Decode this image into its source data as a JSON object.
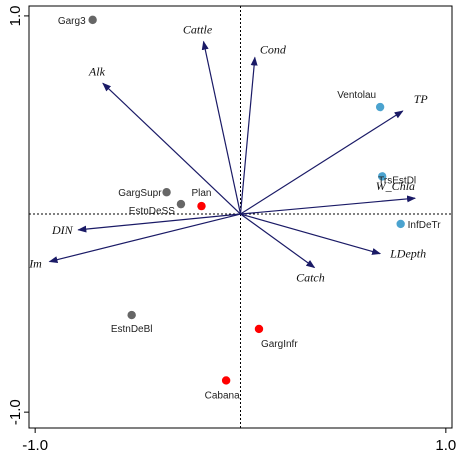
{
  "chart_data": {
    "type": "scatter",
    "title": "",
    "xlabel": "",
    "ylabel": "",
    "xlim": [
      -1.03,
      1.03
    ],
    "ylim": [
      -1.08,
      1.05
    ],
    "x_ticks": [
      "-1.0",
      "1.0"
    ],
    "y_ticks": [
      "1.0",
      "-1.0"
    ],
    "reference_lines": {
      "x": 0,
      "y": 0,
      "style": "dotted"
    },
    "vectors": [
      {
        "label": "Cattle",
        "x": -0.18,
        "y": 0.87
      },
      {
        "label": "Cond",
        "x": 0.07,
        "y": 0.79
      },
      {
        "label": "Alk",
        "x": -0.67,
        "y": 0.66
      },
      {
        "label": "TP",
        "x": 0.79,
        "y": 0.52
      },
      {
        "label": "W_Chla",
        "x": 0.85,
        "y": 0.08
      },
      {
        "label": "DIN",
        "x": -0.79,
        "y": -0.08
      },
      {
        "label": "Im",
        "x": -0.93,
        "y": -0.24
      },
      {
        "label": "LDepth",
        "x": 0.68,
        "y": -0.2
      },
      {
        "label": "Catch",
        "x": 0.36,
        "y": -0.27
      }
    ],
    "series": [
      {
        "color": "#666666",
        "points": [
          {
            "label": "Garg3",
            "x": -0.72,
            "y": 0.98
          },
          {
            "label": "GargSupr",
            "x": -0.36,
            "y": 0.11
          },
          {
            "label": "EstnDeSS",
            "x": -0.29,
            "y": 0.05
          },
          {
            "label": "EstnDeBl",
            "x": -0.53,
            "y": -0.51
          }
        ]
      },
      {
        "color": "#ff0000",
        "points": [
          {
            "label": "Plan",
            "x": -0.19,
            "y": 0.04
          },
          {
            "label": "GargInfr",
            "x": 0.09,
            "y": -0.58
          },
          {
            "label": "Cabana",
            "x": -0.07,
            "y": -0.84
          }
        ]
      },
      {
        "color": "#4ba3cf",
        "points": [
          {
            "label": "Ventolau",
            "x": 0.68,
            "y": 0.54
          },
          {
            "label": "TrsEstDl",
            "x": 0.69,
            "y": 0.19
          },
          {
            "label": "InfDeTr",
            "x": 0.78,
            "y": -0.05
          }
        ]
      }
    ],
    "arrow_color": "#1a1a66"
  }
}
